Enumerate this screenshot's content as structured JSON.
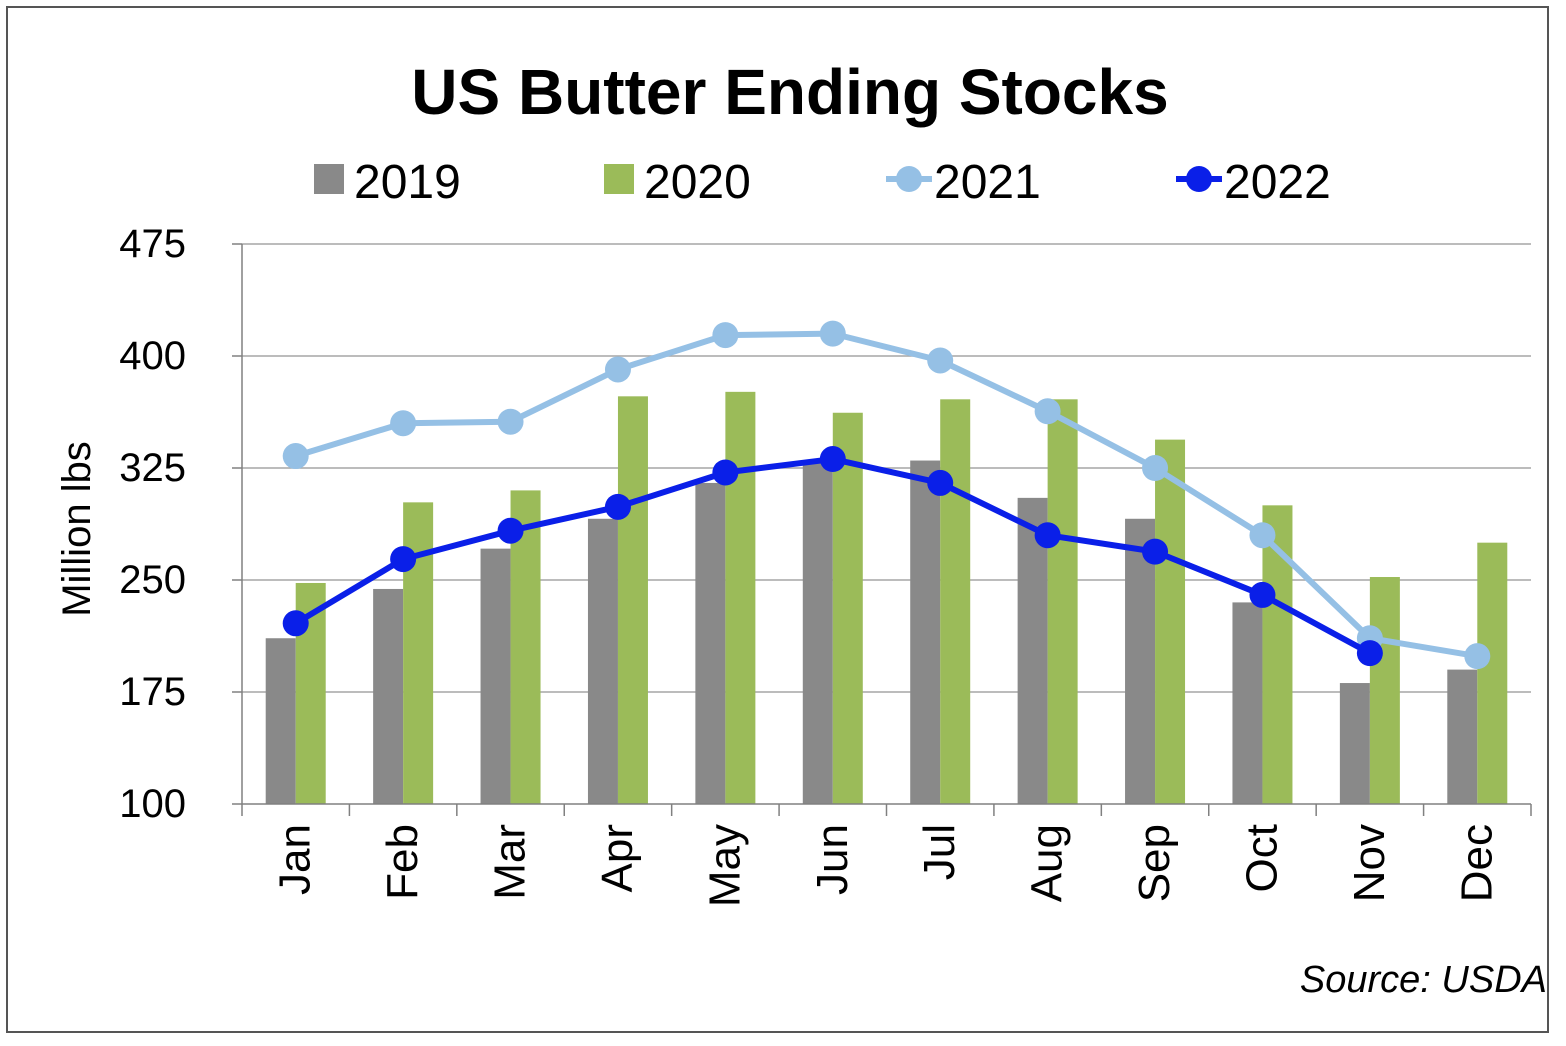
{
  "chart_data": {
    "type": "bar",
    "title": "US Butter Ending Stocks",
    "ylabel": "Million lbs",
    "xlabel": "",
    "source": "Source: USDA",
    "ylim": [
      100,
      475
    ],
    "yticks": [
      100,
      175,
      250,
      325,
      400,
      475
    ],
    "grid": true,
    "legend_position": "top",
    "categories": [
      "Jan",
      "Feb",
      "Mar",
      "Apr",
      "May",
      "Jun",
      "Jul",
      "Aug",
      "Sep",
      "Oct",
      "Nov",
      "Dec"
    ],
    "series": [
      {
        "name": "2019",
        "type": "bar",
        "color": "#898989",
        "values": [
          211,
          244,
          271,
          291,
          315,
          330,
          330,
          305,
          291,
          235,
          181,
          190
        ]
      },
      {
        "name": "2020",
        "type": "bar",
        "color": "#9bbb59",
        "values": [
          248,
          302,
          310,
          373,
          376,
          362,
          371,
          371,
          344,
          300,
          252,
          275
        ]
      },
      {
        "name": "2021",
        "type": "line",
        "color": "#95c0e5",
        "values": [
          333,
          355,
          356,
          391,
          414,
          415,
          397,
          363,
          325,
          280,
          211,
          199
        ]
      },
      {
        "name": "2022",
        "type": "line",
        "color": "#0a1fe8",
        "values": [
          221,
          264,
          283,
          299,
          322,
          331,
          315,
          280,
          269,
          240,
          201,
          null
        ]
      }
    ]
  }
}
